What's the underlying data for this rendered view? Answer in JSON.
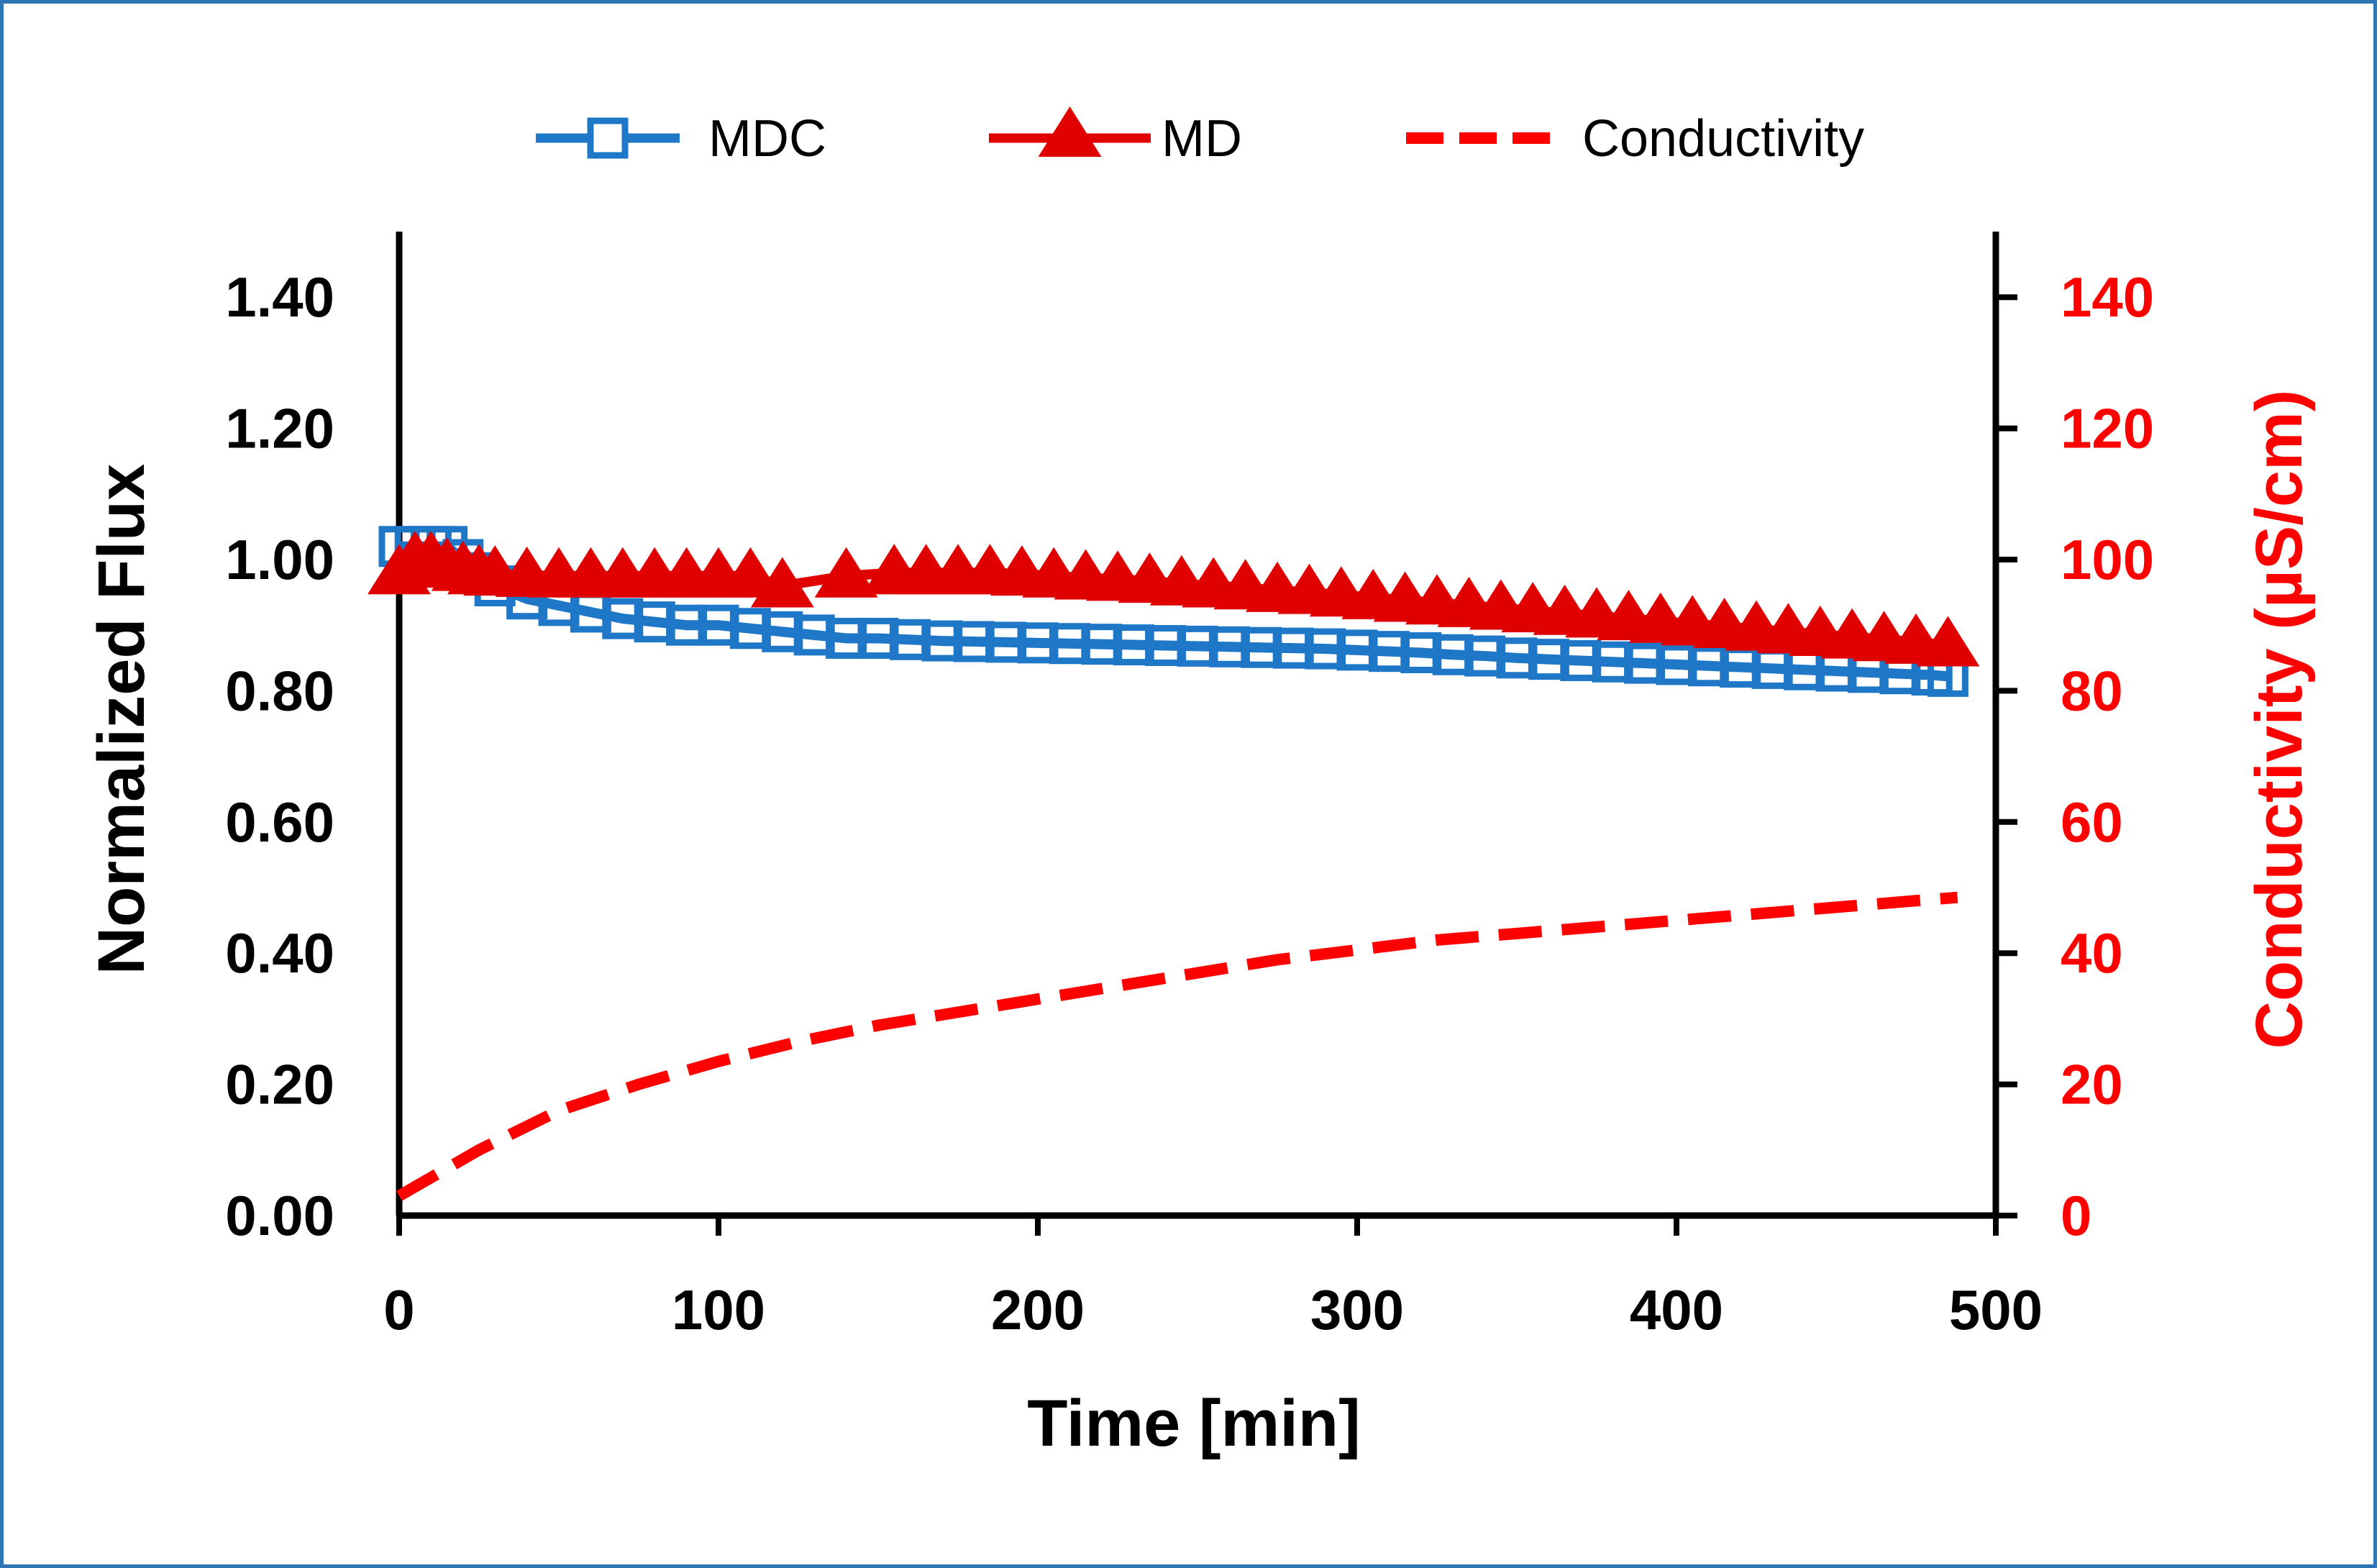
{
  "chart_data": {
    "type": "line",
    "title": "",
    "xlabel": "Time [min]",
    "ylabel": "Normalized Flux",
    "y2label": "Conductivity (µS/cm)",
    "xlim": [
      0,
      500
    ],
    "ylim": [
      0,
      1.5
    ],
    "y2lim": [
      0,
      150
    ],
    "x_ticks": [
      "0",
      "100",
      "200",
      "300",
      "400",
      "500"
    ],
    "y_ticks": [
      "0.00",
      "0.20",
      "0.40",
      "0.60",
      "0.80",
      "1.00",
      "1.20",
      "1.40"
    ],
    "y2_ticks": [
      "0",
      "20",
      "40",
      "60",
      "80",
      "100",
      "120",
      "140"
    ],
    "grid": false,
    "legend_position": "top",
    "series": [
      {
        "name": "MDC",
        "axis": "left",
        "color": "#1f77c8",
        "marker": "square-open",
        "x": [
          0,
          5,
          10,
          15,
          20,
          25,
          30,
          40,
          50,
          60,
          70,
          80,
          90,
          100,
          110,
          120,
          130,
          140,
          150,
          160,
          170,
          180,
          190,
          200,
          210,
          220,
          230,
          240,
          250,
          260,
          270,
          280,
          290,
          300,
          310,
          320,
          330,
          340,
          350,
          360,
          370,
          380,
          390,
          400,
          410,
          420,
          430,
          440,
          450,
          460,
          470,
          480,
          485
        ],
        "y": [
          1.02,
          1.02,
          1.02,
          1.02,
          1.0,
          0.98,
          0.96,
          0.94,
          0.93,
          0.92,
          0.91,
          0.905,
          0.9,
          0.9,
          0.895,
          0.89,
          0.885,
          0.88,
          0.88,
          0.878,
          0.876,
          0.875,
          0.874,
          0.873,
          0.872,
          0.871,
          0.87,
          0.869,
          0.868,
          0.867,
          0.866,
          0.865,
          0.864,
          0.862,
          0.86,
          0.858,
          0.855,
          0.853,
          0.85,
          0.848,
          0.846,
          0.844,
          0.842,
          0.84,
          0.838,
          0.836,
          0.834,
          0.832,
          0.83,
          0.828,
          0.826,
          0.824,
          0.822
        ]
      },
      {
        "name": "MD",
        "axis": "left",
        "color": "#e00000",
        "marker": "triangle",
        "x": [
          0,
          5,
          10,
          15,
          20,
          25,
          30,
          40,
          50,
          60,
          70,
          80,
          90,
          100,
          110,
          120,
          140,
          155,
          165,
          175,
          185,
          195,
          205,
          215,
          225,
          235,
          245,
          255,
          265,
          275,
          285,
          295,
          305,
          315,
          325,
          335,
          345,
          355,
          365,
          375,
          385,
          395,
          405,
          415,
          425,
          435,
          445,
          455,
          465,
          475,
          485
        ],
        "y": [
          0.98,
          1.0,
          1.0,
          0.99,
          0.985,
          0.98,
          0.978,
          0.976,
          0.975,
          0.975,
          0.975,
          0.975,
          0.975,
          0.975,
          0.975,
          0.96,
          0.975,
          0.98,
          0.98,
          0.98,
          0.98,
          0.978,
          0.975,
          0.972,
          0.97,
          0.967,
          0.963,
          0.96,
          0.957,
          0.953,
          0.95,
          0.946,
          0.942,
          0.938,
          0.934,
          0.93,
          0.926,
          0.922,
          0.918,
          0.914,
          0.91,
          0.906,
          0.902,
          0.898,
          0.894,
          0.89,
          0.886,
          0.882,
          0.878,
          0.874,
          0.87
        ]
      },
      {
        "name": "Conductivity",
        "axis": "right",
        "color": "#ff0000",
        "line_style": "dashed",
        "x": [
          0,
          25,
          50,
          75,
          100,
          125,
          150,
          175,
          200,
          225,
          250,
          275,
          300,
          325,
          350,
          375,
          400,
          425,
          450,
          475,
          488
        ],
        "y": [
          3,
          10,
          16,
          20,
          23.5,
          26.5,
          29,
          31,
          33,
          35,
          37,
          39,
          40.5,
          42,
          43,
          44,
          45,
          46,
          47,
          48,
          48.5
        ]
      }
    ]
  }
}
